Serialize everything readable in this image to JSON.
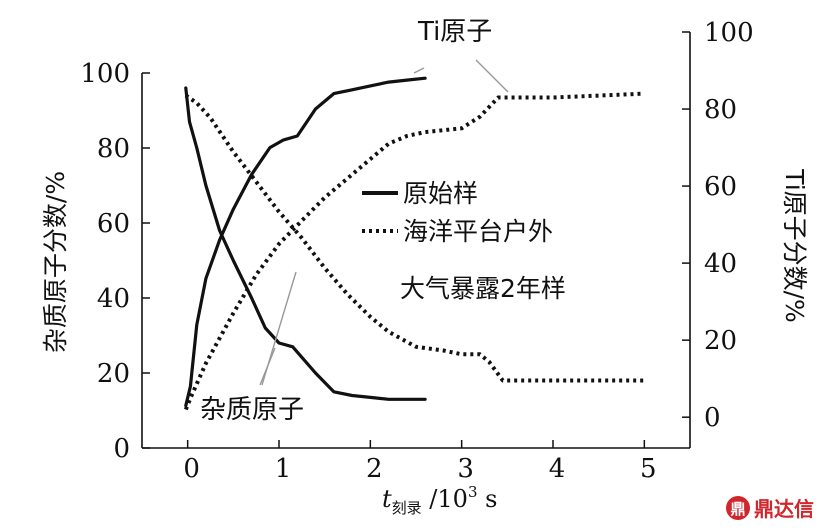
{
  "chart_data": {
    "type": "line",
    "x_label": {
      "var": "t",
      "sub": "刻录",
      "rest": " /10",
      "sup": "3",
      "unit": " s"
    },
    "y_left_label": "杂质原子分数/%",
    "y_right_label": "Ti原子分数/%",
    "xlim": [
      -0.5,
      5.5
    ],
    "ylim_left": [
      0,
      100
    ],
    "ylim_right": [
      -8,
      100
    ],
    "x_ticks": [
      "0",
      "1",
      "2",
      "3",
      "4",
      "5"
    ],
    "y_left_ticks": [
      "0",
      "20",
      "40",
      "60",
      "80",
      "100"
    ],
    "y_right_ticks": [
      "0",
      "20",
      "40",
      "60",
      "80",
      "100"
    ],
    "legend": [
      {
        "label": "原始样",
        "style": "solid"
      },
      {
        "label": "海洋平台户外",
        "style": "dotted"
      },
      {
        "label": "大气暴露2年样",
        "style": "none"
      }
    ],
    "annotations": {
      "ti": "Ti原子",
      "impurity": "杂质原子"
    },
    "series": [
      {
        "style": "solid",
        "axis": "left",
        "x": [
          -0.02,
          0.02,
          0.1,
          0.2,
          0.35,
          0.5,
          0.7,
          0.85,
          1.0,
          1.15,
          1.4,
          1.6,
          1.8,
          2.0,
          2.2,
          2.4,
          2.6
        ],
        "values": [
          96,
          87,
          80,
          70,
          58,
          50,
          40,
          32,
          28,
          27,
          20,
          15,
          14,
          13.5,
          13,
          13,
          13
        ]
      },
      {
        "style": "solid",
        "axis": "right",
        "x": [
          -0.02,
          0.03,
          0.1,
          0.2,
          0.35,
          0.5,
          0.7,
          0.9,
          1.05,
          1.2,
          1.4,
          1.6,
          1.8,
          2.0,
          2.2,
          2.4,
          2.6
        ],
        "values": [
          3,
          8,
          24,
          36,
          46,
          54,
          63,
          70,
          72,
          73,
          80,
          84,
          85,
          86,
          87,
          87.5,
          88
        ]
      },
      {
        "style": "dotted",
        "axis": "left",
        "x": [
          -0.02,
          0.1,
          0.25,
          0.5,
          0.75,
          1.0,
          1.25,
          1.5,
          1.75,
          2.0,
          2.2,
          2.5,
          2.8,
          3.0,
          3.2,
          3.3,
          3.45,
          3.6,
          4.0,
          4.5,
          5.0
        ],
        "values": [
          94,
          92,
          88,
          79,
          71,
          63,
          56,
          48,
          41,
          35,
          31,
          27,
          26,
          25,
          25,
          23,
          18,
          18,
          18,
          18,
          18
        ]
      },
      {
        "style": "dotted",
        "axis": "right",
        "x": [
          -0.02,
          0.05,
          0.2,
          0.5,
          0.75,
          1.0,
          1.25,
          1.5,
          1.75,
          2.0,
          2.2,
          2.4,
          2.6,
          2.8,
          3.0,
          3.2,
          3.4,
          3.6,
          4.0,
          4.5,
          5.0
        ],
        "values": [
          2,
          6,
          14,
          27,
          37,
          45,
          51,
          57,
          62,
          67,
          71,
          73,
          74,
          74.5,
          75,
          78,
          83,
          83,
          83,
          83.5,
          84
        ]
      }
    ]
  },
  "watermark": "鼎达信"
}
